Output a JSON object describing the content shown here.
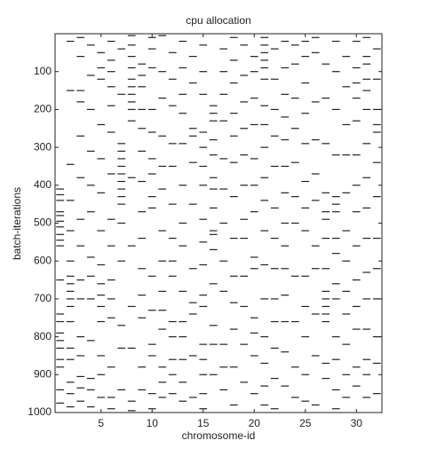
{
  "chart_data": {
    "type": "raster",
    "title": "cpu allocation",
    "x_label": "chromosome-id",
    "y_label": "batch-iterations",
    "xlim": [
      0.5,
      32.5
    ],
    "ylim": [
      0,
      1000
    ],
    "y_inverted": true,
    "xticks": [
      5,
      10,
      15,
      20,
      25,
      30
    ],
    "yticks": [
      100,
      200,
      300,
      400,
      500,
      600,
      700,
      800,
      900,
      1000
    ],
    "color": "#222222",
    "events": [
      {
        "x": 1,
        "iterations": [
          410,
          425,
          440,
          470,
          480,
          495,
          510,
          530,
          545,
          560,
          650,
          740,
          760,
          790,
          810,
          830,
          860,
          880,
          940,
          975
        ]
      },
      {
        "x": 2,
        "iterations": [
          20,
          150,
          345,
          440,
          520,
          600,
          640,
          660,
          680,
          700,
          720,
          760,
          830,
          860,
          920,
          950,
          985
        ]
      },
      {
        "x": 3,
        "iterations": [
          10,
          60,
          150,
          180,
          270,
          380,
          490,
          560,
          650,
          700,
          800,
          850,
          905,
          935,
          970
        ]
      },
      {
        "x": 4,
        "iterations": [
          30,
          110,
          200,
          310,
          400,
          470,
          590,
          640,
          700,
          810,
          910,
          940,
          985
        ]
      },
      {
        "x": 5,
        "iterations": [
          50,
          90,
          120,
          240,
          330,
          420,
          520,
          610,
          660,
          690,
          720,
          760,
          850,
          900,
          960
        ]
      },
      {
        "x": 6,
        "iterations": [
          20,
          70,
          100,
          140,
          190,
          260,
          370,
          490,
          560,
          650,
          700,
          750,
          880,
          960,
          990
        ]
      },
      {
        "x": 7,
        "iterations": [
          40,
          160,
          290,
          310,
          330,
          350,
          370,
          390,
          410,
          430,
          450,
          500,
          600,
          770,
          830,
          940
        ]
      },
      {
        "x": 8,
        "iterations": [
          5,
          30,
          60,
          90,
          120,
          140,
          160,
          180,
          200,
          230,
          380,
          560,
          720,
          830,
          970,
          995
        ]
      },
      {
        "x": 9,
        "iterations": [
          80,
          110,
          140,
          200,
          250,
          310,
          390,
          470,
          540,
          620,
          690,
          750,
          880,
          940
        ]
      },
      {
        "x": 10,
        "iterations": [
          10,
          40,
          90,
          200,
          260,
          330,
          370,
          430,
          460,
          640,
          730,
          820,
          850,
          950,
          990
        ]
      },
      {
        "x": 11,
        "iterations": [
          5,
          100,
          170,
          270,
          350,
          410,
          520,
          600,
          680,
          730,
          780,
          880,
          920,
          960
        ]
      },
      {
        "x": 12,
        "iterations": [
          50,
          120,
          190,
          290,
          350,
          450,
          540,
          600,
          640,
          760,
          800,
          860,
          900,
          950
        ]
      },
      {
        "x": 13,
        "iterations": [
          20,
          90,
          160,
          210,
          290,
          400,
          500,
          560,
          680,
          760,
          800,
          860,
          920,
          970
        ]
      },
      {
        "x": 14,
        "iterations": [
          60,
          130,
          250,
          270,
          340,
          450,
          620,
          710,
          740,
          850,
          960
        ]
      },
      {
        "x": 15,
        "iterations": [
          30,
          100,
          160,
          260,
          300,
          350,
          400,
          490,
          550,
          610,
          690,
          720,
          820,
          860,
          900,
          950,
          990
        ]
      },
      {
        "x": 16,
        "iterations": [
          190,
          210,
          230,
          280,
          320,
          380,
          410,
          460,
          520,
          530,
          570,
          660,
          770,
          820,
          900
        ]
      },
      {
        "x": 17,
        "iterations": [
          40,
          100,
          160,
          230,
          330,
          410,
          500,
          600,
          680,
          820,
          880,
          940
        ]
      },
      {
        "x": 18,
        "iterations": [
          10,
          70,
          130,
          210,
          270,
          340,
          430,
          540,
          640,
          710,
          780,
          880,
          980
        ]
      },
      {
        "x": 19,
        "iterations": [
          30,
          110,
          180,
          250,
          320,
          400,
          490,
          540,
          640,
          720,
          820,
          920
        ]
      },
      {
        "x": 20,
        "iterations": [
          60,
          100,
          170,
          240,
          330,
          400,
          470,
          590,
          620,
          750,
          790,
          850,
          950
        ]
      },
      {
        "x": 21,
        "iterations": [
          10,
          30,
          50,
          70,
          90,
          120,
          190,
          240,
          300,
          380,
          440,
          520,
          610,
          700,
          800,
          870,
          930,
          980
        ]
      },
      {
        "x": 22,
        "iterations": [
          40,
          120,
          200,
          270,
          350,
          460,
          540,
          620,
          700,
          760,
          830,
          910,
          990
        ]
      },
      {
        "x": 23,
        "iterations": [
          20,
          90,
          160,
          220,
          280,
          350,
          420,
          500,
          560,
          620,
          690,
          760,
          840,
          930
        ]
      },
      {
        "x": 24,
        "iterations": [
          30,
          80,
          170,
          250,
          340,
          430,
          500,
          640,
          760,
          880,
          960
        ]
      },
      {
        "x": 25,
        "iterations": [
          20,
          60,
          130,
          210,
          290,
          390,
          460,
          520,
          640,
          720,
          800,
          900,
          970
        ]
      },
      {
        "x": 26,
        "iterations": [
          10,
          50,
          180,
          280,
          370,
          440,
          560,
          620,
          740,
          850,
          980
        ]
      },
      {
        "x": 27,
        "iterations": [
          80,
          170,
          290,
          420,
          470,
          490,
          540,
          620,
          680,
          700,
          720,
          740,
          760,
          870,
          910
        ]
      },
      {
        "x": 28,
        "iterations": [
          20,
          100,
          200,
          320,
          430,
          450,
          470,
          540,
          580,
          660,
          700,
          800,
          860,
          940,
          990
        ]
      },
      {
        "x": 29,
        "iterations": [
          60,
          140,
          240,
          320,
          420,
          520,
          600,
          680,
          740,
          820,
          900,
          960
        ]
      },
      {
        "x": 30,
        "iterations": [
          20,
          90,
          130,
          170,
          230,
          320,
          400,
          470,
          560,
          650,
          720,
          780,
          880,
          930
        ]
      },
      {
        "x": 31,
        "iterations": [
          10,
          60,
          80,
          120,
          150,
          200,
          290,
          380,
          460,
          540,
          630,
          700,
          780,
          860,
          900,
          960
        ]
      },
      {
        "x": 32,
        "iterations": [
          40,
          120,
          200,
          240,
          260,
          340,
          430,
          540,
          620,
          700,
          800,
          870,
          950
        ]
      }
    ]
  }
}
